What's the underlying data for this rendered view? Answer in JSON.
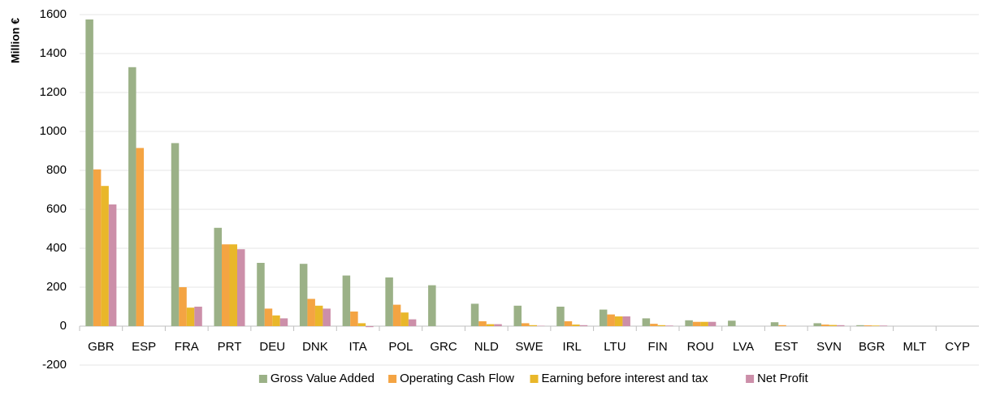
{
  "chart_data": {
    "type": "bar",
    "y_label": "Million €",
    "categories": [
      "GBR",
      "ESP",
      "FRA",
      "PRT",
      "DEU",
      "DNK",
      "ITA",
      "POL",
      "GRC",
      "NLD",
      "SWE",
      "IRL",
      "LTU",
      "FIN",
      "ROU",
      "LVA",
      "EST",
      "SVN",
      "BGR",
      "MLT",
      "CYP"
    ],
    "series": [
      {
        "name": "Gross Value Added",
        "color": "#9bb187",
        "values": [
          1575,
          1330,
          940,
          505,
          325,
          320,
          260,
          250,
          210,
          115,
          105,
          100,
          85,
          40,
          30,
          28,
          20,
          15,
          5,
          0,
          0
        ]
      },
      {
        "name": "Operating Cash Flow",
        "color": "#f4a443",
        "values": [
          805,
          915,
          200,
          420,
          90,
          140,
          75,
          110,
          0,
          25,
          15,
          25,
          60,
          12,
          22,
          0,
          5,
          8,
          4,
          0,
          0
        ]
      },
      {
        "name": "Earning before interest and tax",
        "color": "#e9b72a",
        "values": [
          720,
          0,
          95,
          420,
          55,
          105,
          15,
          70,
          0,
          10,
          5,
          8,
          50,
          5,
          22,
          0,
          0,
          6,
          3,
          0,
          0
        ]
      },
      {
        "name": "Net Profit",
        "color": "#cc8fa9",
        "values": [
          625,
          0,
          100,
          395,
          40,
          90,
          -5,
          35,
          0,
          10,
          2,
          5,
          50,
          3,
          22,
          0,
          0,
          5,
          3,
          0,
          0
        ]
      }
    ],
    "ylim": [
      -200,
      1600
    ],
    "yticks": [
      -200,
      0,
      200,
      400,
      600,
      800,
      1000,
      1200,
      1400,
      1600
    ],
    "grid": true,
    "legend": "bottom"
  }
}
